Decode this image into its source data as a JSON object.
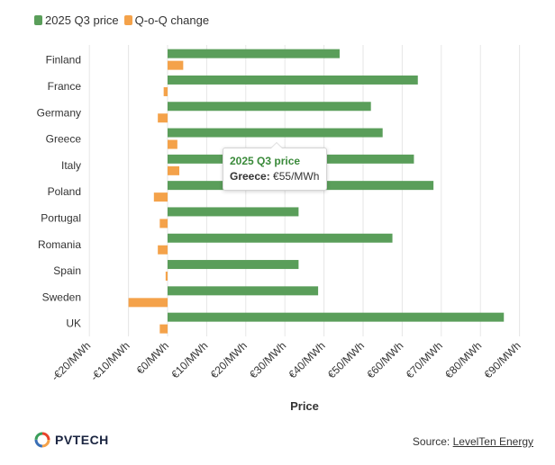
{
  "legend": {
    "items": [
      {
        "label": "2025 Q3 price",
        "color": "#5a9e5a"
      },
      {
        "label": "Q-o-Q change",
        "color": "#f4a24a"
      }
    ]
  },
  "tooltip": {
    "series": "2025 Q3 price",
    "category": "Greece:",
    "value": "€55/MWh"
  },
  "footer": {
    "logo_text": "PVTECH",
    "source_prefix": "Source:",
    "source_link": "LevelTen Energy"
  },
  "chart_data": {
    "type": "bar",
    "orientation": "horizontal",
    "categories": [
      "Finland",
      "France",
      "Germany",
      "Greece",
      "Italy",
      "Poland",
      "Portugal",
      "Romania",
      "Spain",
      "Sweden",
      "UK"
    ],
    "series": [
      {
        "name": "2025 Q3 price",
        "color": "#5a9e5a",
        "values": [
          44,
          64,
          52,
          55,
          63,
          68,
          33.5,
          57.5,
          33.5,
          38.5,
          86
        ]
      },
      {
        "name": "Q-o-Q change",
        "color": "#f4a24a",
        "values": [
          4,
          -1,
          -2.5,
          2.5,
          3,
          -3.5,
          -2,
          -2.5,
          -0.5,
          -10,
          -2
        ]
      }
    ],
    "xlabel": "Price",
    "xlim": [
      -30,
      90
    ],
    "xticks": [
      -20,
      -10,
      0,
      10,
      20,
      30,
      40,
      50,
      60,
      70,
      80,
      90
    ],
    "xtick_labels": [
      "-€20/MWh",
      "-€10/MWh",
      "€0/MWh",
      "€10/MWh",
      "€20/MWh",
      "€30/MWh",
      "€40/MWh",
      "€50/MWh",
      "€60/MWh",
      "€70/MWh",
      "€80/MWh",
      "€90/MWh"
    ],
    "grid": true,
    "legend_position": "top-left"
  }
}
